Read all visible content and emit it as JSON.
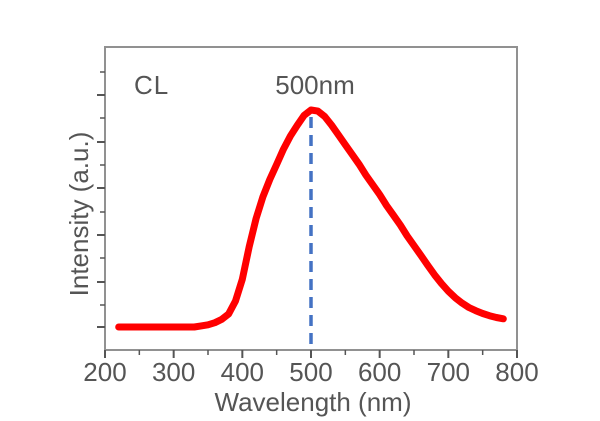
{
  "chart_data": {
    "type": "line",
    "corner_label": "CL",
    "xlabel": "Wavelength (nm)",
    "ylabel": "Intensity (a.u.)",
    "xlim": [
      200,
      800
    ],
    "x_ticks_major": [
      200,
      300,
      400,
      500,
      600,
      700,
      800
    ],
    "x_ticks_minor": [
      250,
      350,
      450,
      550,
      650,
      750
    ],
    "y_tick_labels": [],
    "grid": "off",
    "legend": "none",
    "colors": {
      "curve": "#ff0000",
      "peak_line": "#4472c4",
      "text": "#555555",
      "frame": "#919191",
      "ticks": "#555555"
    },
    "peak_line": {
      "x": 500,
      "label": "500nm",
      "style": "dashed",
      "color": "#4472c4"
    },
    "series": [
      {
        "name": "CL",
        "color": "#ff0000",
        "x": [
          220,
          230,
          240,
          250,
          260,
          270,
          280,
          290,
          300,
          310,
          320,
          330,
          340,
          350,
          360,
          370,
          380,
          390,
          400,
          410,
          420,
          430,
          440,
          450,
          460,
          470,
          480,
          490,
          500,
          510,
          520,
          530,
          540,
          550,
          560,
          570,
          580,
          590,
          600,
          610,
          620,
          630,
          640,
          650,
          660,
          670,
          680,
          690,
          700,
          710,
          720,
          730,
          740,
          750,
          760,
          770,
          780
        ],
        "y": [
          0,
          0,
          0,
          0,
          0,
          0,
          0,
          0,
          0,
          0,
          0,
          0,
          0.005,
          0.01,
          0.02,
          0.035,
          0.06,
          0.12,
          0.22,
          0.37,
          0.5,
          0.6,
          0.68,
          0.75,
          0.82,
          0.88,
          0.93,
          0.975,
          1.0,
          0.995,
          0.97,
          0.93,
          0.885,
          0.84,
          0.795,
          0.75,
          0.7,
          0.655,
          0.61,
          0.56,
          0.515,
          0.47,
          0.42,
          0.375,
          0.33,
          0.285,
          0.24,
          0.2,
          0.165,
          0.135,
          0.11,
          0.09,
          0.075,
          0.062,
          0.052,
          0.044,
          0.038
        ]
      }
    ]
  }
}
